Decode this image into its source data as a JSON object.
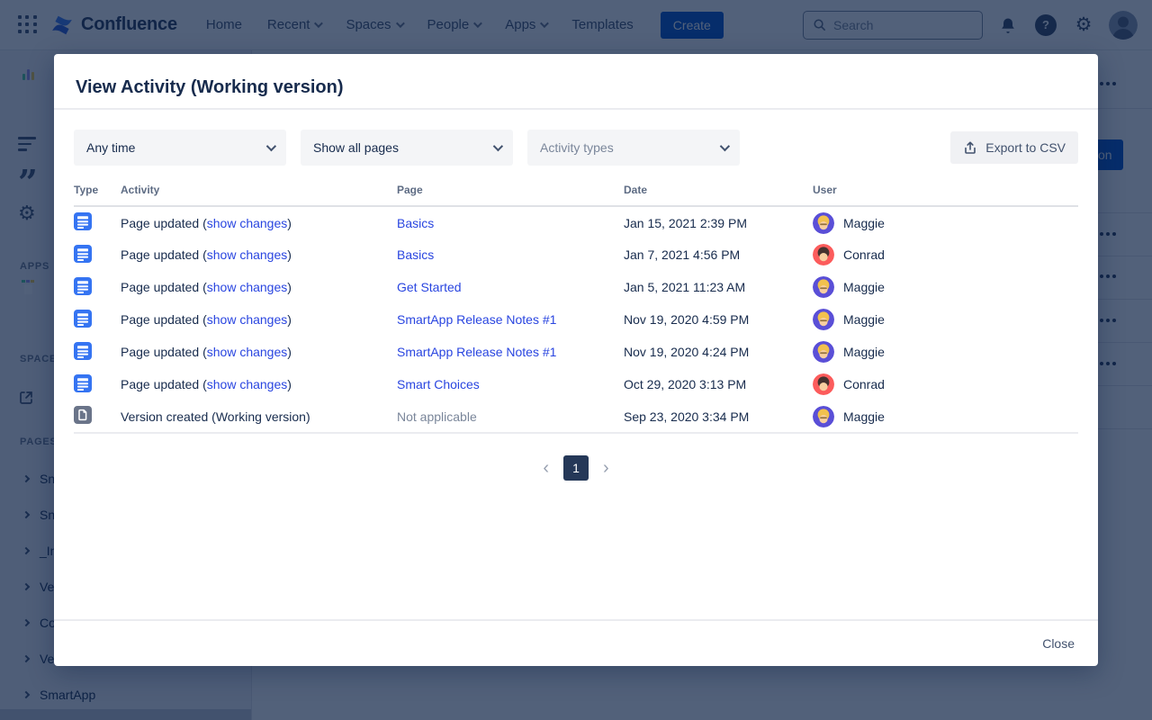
{
  "nav": {
    "brand": "Confluence",
    "items": [
      {
        "label": "Home",
        "chevron": false
      },
      {
        "label": "Recent",
        "chevron": true
      },
      {
        "label": "Spaces",
        "chevron": true
      },
      {
        "label": "People",
        "chevron": true
      },
      {
        "label": "Apps",
        "chevron": true
      },
      {
        "label": "Templates",
        "chevron": false
      }
    ],
    "create_label": "Create",
    "search_placeholder": "Search"
  },
  "sidebar": {
    "sections": {
      "apps": "APPS",
      "space": "SPACE S",
      "pages": "PAGES"
    },
    "tree_items": [
      "Sn",
      "Sn",
      "_In",
      "Ve",
      "Co",
      "Ve",
      "SmartApp"
    ]
  },
  "background_content": {
    "button_fragment": "on"
  },
  "modal": {
    "title": "View Activity (Working version)",
    "filters": {
      "time_value": "Any time",
      "pages_value": "Show all pages",
      "types_placeholder": "Activity types"
    },
    "export_label": "Export to CSV",
    "table": {
      "columns": [
        "Type",
        "Activity",
        "Page",
        "Date",
        "User"
      ],
      "rows": [
        {
          "type": "page",
          "activity_prefix": "Page updated (",
          "activity_link": "show changes",
          "activity_suffix": ")",
          "page": "Basics",
          "page_is_link": true,
          "date": "Jan 15, 2021 2:39 PM",
          "user": "Maggie"
        },
        {
          "type": "page",
          "activity_prefix": "Page updated (",
          "activity_link": "show changes",
          "activity_suffix": ")",
          "page": "Basics",
          "page_is_link": true,
          "date": "Jan 7, 2021 4:56 PM",
          "user": "Conrad"
        },
        {
          "type": "page",
          "activity_prefix": "Page updated (",
          "activity_link": "show changes",
          "activity_suffix": ")",
          "page": "Get Started",
          "page_is_link": true,
          "date": "Jan 5, 2021 11:23 AM",
          "user": "Maggie"
        },
        {
          "type": "page",
          "activity_prefix": "Page updated (",
          "activity_link": "show changes",
          "activity_suffix": ")",
          "page": "SmartApp Release Notes #1",
          "page_is_link": true,
          "date": "Nov 19, 2020 4:59 PM",
          "user": "Maggie"
        },
        {
          "type": "page",
          "activity_prefix": "Page updated (",
          "activity_link": "show changes",
          "activity_suffix": ")",
          "page": "SmartApp Release Notes #1",
          "page_is_link": true,
          "date": "Nov 19, 2020 4:24 PM",
          "user": "Maggie"
        },
        {
          "type": "page",
          "activity_prefix": "Page updated (",
          "activity_link": "show changes",
          "activity_suffix": ")",
          "page": "Smart Choices",
          "page_is_link": true,
          "date": "Oct 29, 2020 3:13 PM",
          "user": "Conrad"
        },
        {
          "type": "version",
          "activity_prefix": "Version created (Working version)",
          "activity_link": "",
          "activity_suffix": "",
          "page": "Not applicable",
          "page_is_link": false,
          "date": "Sep 23, 2020 3:34 PM",
          "user": "Maggie"
        }
      ]
    },
    "pagination": {
      "current_page": "1"
    },
    "close_label": "Close"
  },
  "users": {
    "Maggie": {
      "bg": "#5A4FD7",
      "hair": "#F2C14E",
      "skin": "#F8CFA0",
      "glasses": true
    },
    "Conrad": {
      "bg": "#FC5C5C",
      "hair": "#45322E",
      "skin": "#F8CFA0",
      "glasses": false
    }
  },
  "colors": {
    "link": "#2945E0",
    "brand_blue": "#0052CC",
    "page_type_icon": "#3574F2",
    "version_type_icon": "#6A7489",
    "pagination_current_bg": "#253858"
  }
}
